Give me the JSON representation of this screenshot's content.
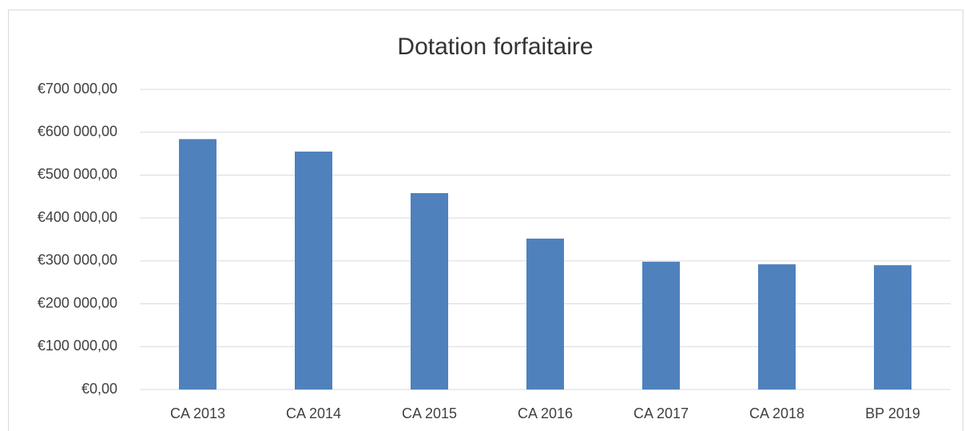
{
  "chart_data": {
    "type": "bar",
    "title": "Dotation forfaitaire",
    "categories": [
      "CA 2013",
      "CA 2014",
      "CA 2015",
      "CA 2016",
      "CA 2017",
      "CA 2018",
      "BP 2019"
    ],
    "values": [
      584000,
      555000,
      458000,
      352000,
      298000,
      292000,
      290000
    ],
    "color": "#4f81bd",
    "ylim": [
      0,
      700000
    ],
    "yticks": [
      {
        "value": 0,
        "label": "€0,00"
      },
      {
        "value": 100000,
        "label": "€100 000,00"
      },
      {
        "value": 200000,
        "label": "€200 000,00"
      },
      {
        "value": 300000,
        "label": "€300 000,00"
      },
      {
        "value": 400000,
        "label": "€400 000,00"
      },
      {
        "value": 500000,
        "label": "€500 000,00"
      },
      {
        "value": 600000,
        "label": "€600 000,00"
      },
      {
        "value": 700000,
        "label": "€700 000,00"
      }
    ],
    "grid": true
  }
}
